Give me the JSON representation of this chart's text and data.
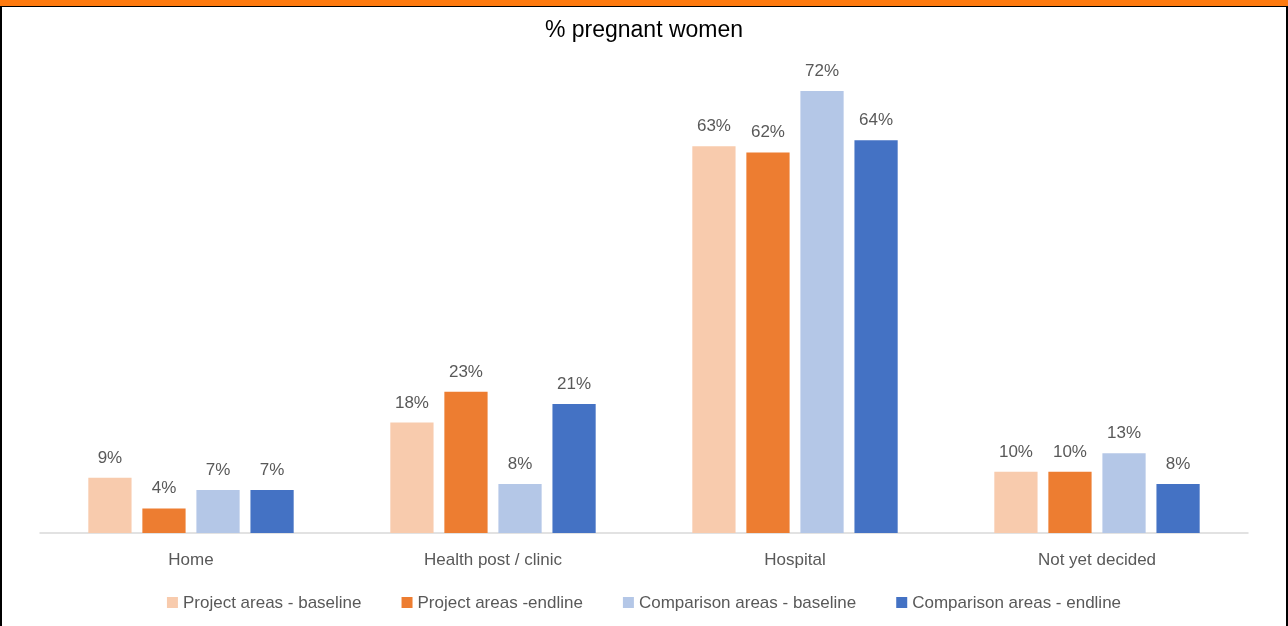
{
  "chart_data": {
    "type": "bar",
    "title": "% pregnant women",
    "categories": [
      "Home",
      "Health post / clinic",
      "Hospital",
      "Not yet decided"
    ],
    "series": [
      {
        "name": "Project areas - baseline",
        "color": "#f8cbad",
        "values": [
          9,
          18,
          63,
          10
        ],
        "value_labels": [
          "9%",
          "18%",
          "63%",
          "10%"
        ]
      },
      {
        "name": "Project areas -endline",
        "color": "#ed7d31",
        "values": [
          4,
          23,
          62,
          10
        ],
        "value_labels": [
          "4%",
          "23%",
          "62%",
          "10%"
        ]
      },
      {
        "name": "Comparison areas - baseline",
        "color": "#b4c7e7",
        "values": [
          7,
          8,
          72,
          13
        ],
        "value_labels": [
          "7%",
          "8%",
          "72%",
          "13%"
        ]
      },
      {
        "name": "Comparison areas - endline",
        "color": "#4472c4",
        "values": [
          7,
          21,
          64,
          8
        ],
        "value_labels": [
          "7%",
          "21%",
          "64%",
          "8%"
        ]
      }
    ],
    "legend": "bottom",
    "tick_labels": "x"
  }
}
